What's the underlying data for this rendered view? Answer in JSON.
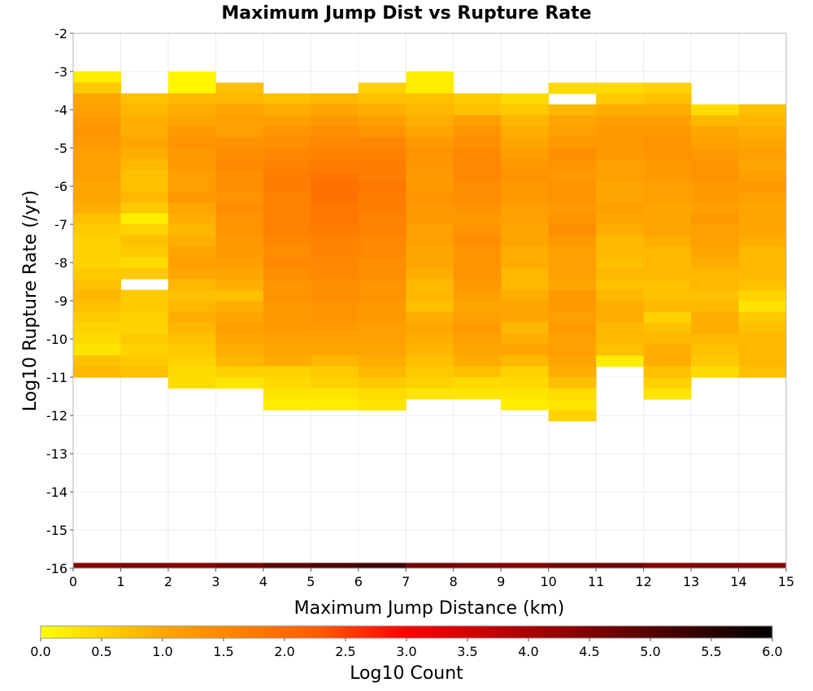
{
  "chart_data": {
    "type": "heatmap",
    "title": "Maximum Jump Dist vs Rupture Rate",
    "xlabel": "Maximum Jump Distance (km)",
    "ylabel": "Log10 Rupture Rate (/yr)",
    "xlim": [
      0,
      15
    ],
    "ylim": [
      -16,
      -2
    ],
    "x_ticks": [
      "0",
      "1",
      "2",
      "3",
      "4",
      "5",
      "6",
      "7",
      "8",
      "9",
      "10",
      "11",
      "12",
      "13",
      "14",
      "15"
    ],
    "y_ticks": [
      "-2",
      "-3",
      "-4",
      "-5",
      "-6",
      "-7",
      "-8",
      "-9",
      "-10",
      "-11",
      "-12",
      "-13",
      "-14",
      "-15",
      "-16"
    ],
    "grid": true,
    "bin_width_x": 1,
    "bin_height_y": 0.2857,
    "colorbar": {
      "label": "Log10 Count",
      "range": [
        0,
        6
      ],
      "ticks": [
        "0.0",
        "0.5",
        "1.0",
        "1.5",
        "2.0",
        "2.5",
        "3.0",
        "3.5",
        "4.0",
        "4.5",
        "5.0",
        "5.5",
        "6.0"
      ],
      "colors": [
        "#ffff00",
        "#ffa500",
        "#ff5a00",
        "#ff0000",
        "#800000",
        "#000000"
      ]
    },
    "columns": [
      {
        "x": 0,
        "top": -3,
        "values": [
          0.2,
          0.6,
          1.0,
          1.1,
          1.2,
          1.3,
          1.2,
          1.1,
          1.1,
          1.1,
          1.0,
          1.0,
          0.9,
          0.7,
          0.6,
          0.5,
          0.5,
          0.5,
          0.6,
          0.7,
          0.8,
          0.7,
          0.6,
          0.5,
          0.4,
          0.3,
          0.7,
          0.8
        ]
      },
      {
        "x": 1,
        "top": -3.57,
        "values": [
          0.7,
          0.8,
          0.9,
          0.9,
          1.0,
          0.9,
          0.8,
          0.7,
          0.7,
          0.8,
          0.6,
          0.2,
          0.5,
          0.7,
          0.6,
          0.4,
          0.6,
          null,
          0.6,
          0.6,
          0.5,
          0.5,
          0.6,
          0.5,
          0.6,
          0.7
        ]
      },
      {
        "x": 2,
        "top": -3,
        "values": [
          0.1,
          0.1,
          0.8,
          0.9,
          1.0,
          1.2,
          1.3,
          1.2,
          1.2,
          1.1,
          1.1,
          1.2,
          1.0,
          0.9,
          0.8,
          0.9,
          1.0,
          1.1,
          1.0,
          0.8,
          0.7,
          0.8,
          0.9,
          0.8,
          0.7,
          0.6,
          0.5,
          0.4,
          0.4
        ]
      },
      {
        "x": 3,
        "top": -3.29,
        "values": [
          0.7,
          0.8,
          1.0,
          1.1,
          1.1,
          1.3,
          1.4,
          1.5,
          1.4,
          1.4,
          1.3,
          1.4,
          1.3,
          1.3,
          1.2,
          1.2,
          1.1,
          1.0,
          0.9,
          0.7,
          0.9,
          1.0,
          1.1,
          1.0,
          0.9,
          0.8,
          0.5,
          0.3
        ]
      },
      {
        "x": 4,
        "top": -3.57,
        "values": [
          0.7,
          0.9,
          1.1,
          1.3,
          1.4,
          1.5,
          1.6,
          1.7,
          1.7,
          1.6,
          1.6,
          1.6,
          1.6,
          1.5,
          1.4,
          1.5,
          1.4,
          1.3,
          1.3,
          1.2,
          1.2,
          1.2,
          1.1,
          1.0,
          0.9,
          0.5,
          0.4,
          0.3,
          0.2
        ]
      },
      {
        "x": 5,
        "top": -3.57,
        "values": [
          0.8,
          1.0,
          1.2,
          1.4,
          1.5,
          1.6,
          1.7,
          1.8,
          1.9,
          1.9,
          1.8,
          1.8,
          1.7,
          1.6,
          1.6,
          1.5,
          1.5,
          1.4,
          1.4,
          1.3,
          1.3,
          1.2,
          1.1,
          1.0,
          0.8,
          0.6,
          0.5,
          0.3,
          0.2
        ]
      },
      {
        "x": 6,
        "top": -3.29,
        "values": [
          0.5,
          0.7,
          0.9,
          1.1,
          1.3,
          1.5,
          1.6,
          1.7,
          1.7,
          1.8,
          1.7,
          1.7,
          1.6,
          1.6,
          1.5,
          1.5,
          1.4,
          1.4,
          1.3,
          1.3,
          1.2,
          1.2,
          1.1,
          1.1,
          1.0,
          0.9,
          0.8,
          0.6,
          0.4,
          0.3
        ]
      },
      {
        "x": 7,
        "top": -3,
        "values": [
          0.2,
          0.2,
          0.7,
          0.8,
          0.9,
          1.0,
          1.2,
          1.3,
          1.3,
          1.2,
          1.2,
          1.3,
          1.2,
          1.2,
          1.1,
          1.1,
          1.0,
          1.0,
          0.9,
          0.8,
          0.8,
          0.7,
          0.9,
          1.0,
          0.9,
          0.8,
          0.7,
          0.6,
          0.5,
          0.3
        ]
      },
      {
        "x": 8,
        "top": -3.57,
        "values": [
          0.6,
          0.7,
          1.1,
          1.3,
          1.4,
          1.5,
          1.5,
          1.5,
          1.4,
          1.4,
          1.3,
          1.2,
          1.3,
          1.4,
          1.3,
          1.3,
          1.3,
          1.2,
          1.1,
          1.0,
          1.1,
          1.2,
          1.1,
          1.0,
          0.9,
          0.7,
          0.4,
          0.3
        ]
      },
      {
        "x": 9,
        "top": -3.57,
        "values": [
          0.4,
          0.6,
          0.8,
          0.9,
          1.0,
          1.1,
          1.2,
          1.3,
          1.2,
          1.2,
          1.1,
          1.1,
          1.0,
          1.0,
          0.9,
          0.9,
          0.8,
          0.8,
          0.9,
          1.0,
          1.0,
          0.8,
          0.9,
          1.0,
          0.8,
          0.5,
          0.4,
          0.3,
          0.2
        ]
      },
      {
        "x": 10,
        "top": -3.29,
        "values": [
          0.4,
          null,
          0.8,
          1.0,
          1.1,
          1.2,
          1.4,
          1.3,
          1.2,
          1.3,
          1.3,
          1.2,
          1.3,
          1.4,
          1.2,
          1.1,
          1.1,
          1.1,
          1.0,
          1.2,
          1.2,
          1.1,
          1.2,
          1.1,
          1.1,
          1.0,
          0.9,
          0.7,
          0.4,
          0.3,
          0.5
        ]
      },
      {
        "x": 11,
        "top": -3.29,
        "values": [
          0.4,
          0.6,
          0.9,
          1.1,
          1.2,
          1.2,
          1.2,
          1.1,
          1.1,
          1.0,
          1.0,
          1.1,
          1.0,
          0.9,
          0.8,
          0.8,
          0.7,
          0.8,
          0.7,
          0.8,
          0.9,
          0.9,
          0.8,
          0.8,
          0.7,
          0.2
        ]
      },
      {
        "x": 12,
        "top": -3.29,
        "values": [
          0.5,
          0.7,
          0.9,
          1.1,
          1.2,
          1.3,
          1.3,
          1.2,
          1.2,
          1.1,
          1.1,
          1.0,
          1.0,
          1.0,
          0.9,
          0.8,
          0.8,
          0.8,
          0.7,
          0.7,
          0.8,
          0.5,
          0.7,
          0.8,
          0.9,
          0.9,
          0.7,
          0.5,
          0.3
        ]
      },
      {
        "x": 13,
        "top": -3.86,
        "values": [
          0.4,
          0.8,
          1.0,
          1.1,
          1.2,
          1.3,
          1.3,
          1.2,
          1.2,
          1.1,
          1.2,
          1.1,
          1.1,
          1.0,
          0.9,
          0.8,
          0.8,
          0.7,
          0.8,
          0.9,
          0.9,
          0.8,
          0.7,
          0.6,
          0.4
        ]
      },
      {
        "x": 14,
        "top": -3.86,
        "values": [
          0.7,
          0.8,
          0.9,
          1.0,
          1.1,
          1.0,
          1.1,
          1.2,
          1.1,
          1.0,
          1.0,
          1.0,
          0.9,
          0.8,
          0.8,
          0.8,
          0.7,
          0.5,
          0.3,
          0.6,
          0.7,
          0.8,
          0.8,
          0.8,
          0.7
        ]
      }
    ],
    "bottom_row": {
      "y": -16,
      "values": [
        4.4,
        4.5,
        4.4,
        4.6,
        4.9,
        5.1,
        5.2,
        4.6,
        4.5,
        4.4,
        4.6,
        4.7,
        4.4,
        4.5,
        4.4
      ]
    }
  }
}
